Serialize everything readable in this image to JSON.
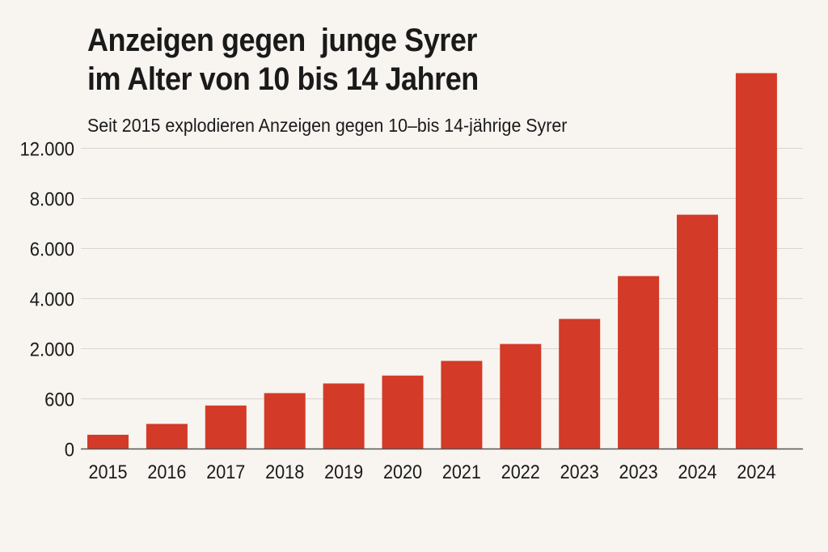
{
  "chart_data": {
    "type": "bar",
    "title_lines": [
      "Anzeigen gegen  junge Syrer",
      "im Alter von 10 bis 14 Jahren"
    ],
    "subtitle": "Seit 2015 explodieren Anzeigen gegen 10–bis 14-jährige Syrer",
    "xlabel": "",
    "ylabel": "",
    "categories": [
      "2015",
      "2016",
      "2017",
      "2018",
      "2019",
      "2020",
      "2021",
      "2022",
      "2023",
      "2023",
      "2024",
      "2024"
    ],
    "values": [
      170,
      300,
      520,
      760,
      1030,
      1250,
      1660,
      2190,
      3190,
      4900,
      7350,
      18000
    ],
    "y_ticks": [
      0,
      600,
      2000,
      4000,
      6000,
      8000,
      12000
    ],
    "y_tick_labels": [
      "0",
      "600",
      "2.000",
      "4.000",
      "6.000",
      "8.000",
      "12.000"
    ],
    "y_scale": "non-linear (evenly spaced ticks)",
    "grid": true,
    "legend": "none",
    "colors": {
      "bar": "#d33a27",
      "grid": "#d9d5d1",
      "axis": "#555555",
      "background": "#f8f4f0"
    }
  }
}
